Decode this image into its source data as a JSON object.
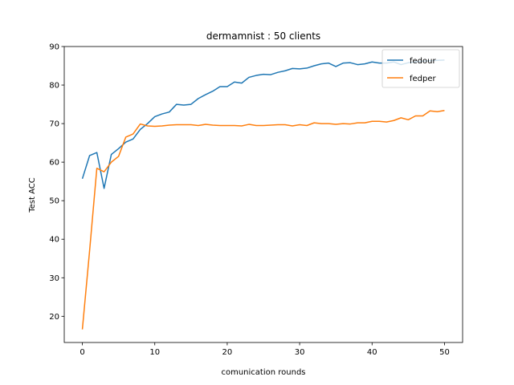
{
  "chart_data": {
    "type": "line",
    "title": "dermamnist : 50 clients",
    "xlabel": "comunication rounds",
    "ylabel": "Test ACC",
    "xlim": [
      -2.5,
      52.5
    ],
    "ylim": [
      13.2,
      90
    ],
    "xticks": [
      0,
      10,
      20,
      30,
      40,
      50
    ],
    "yticks": [
      20,
      30,
      40,
      50,
      60,
      70,
      80,
      90
    ],
    "grid": false,
    "legend_position": "top-right",
    "x": [
      0,
      1,
      2,
      3,
      4,
      5,
      6,
      7,
      8,
      9,
      10,
      11,
      12,
      13,
      14,
      15,
      16,
      17,
      18,
      19,
      20,
      21,
      22,
      23,
      24,
      25,
      26,
      27,
      28,
      29,
      30,
      31,
      32,
      33,
      34,
      35,
      36,
      37,
      38,
      39,
      40,
      41,
      42,
      43,
      44,
      45,
      46,
      47,
      48,
      49,
      50
    ],
    "series": [
      {
        "name": "fedour",
        "color": "#1f77b4",
        "values": [
          55.7,
          61.7,
          62.5,
          53.2,
          62.0,
          63.5,
          65.2,
          66.0,
          68.5,
          70.0,
          71.8,
          72.5,
          73.0,
          75.0,
          74.8,
          75.0,
          76.5,
          77.5,
          78.4,
          79.6,
          79.6,
          80.8,
          80.5,
          82.0,
          82.5,
          82.8,
          82.7,
          83.3,
          83.7,
          84.3,
          84.2,
          84.4,
          85.0,
          85.5,
          85.7,
          84.8,
          85.7,
          85.8,
          85.3,
          85.5,
          86.0,
          85.7,
          85.7,
          86.0,
          85.3,
          85.8,
          86.0,
          86.2,
          86.3,
          86.4,
          86.5
        ]
      },
      {
        "name": "fedper",
        "color": "#ff7f0e",
        "values": [
          16.6,
          37.0,
          58.4,
          57.5,
          60.0,
          61.5,
          66.5,
          67.3,
          69.9,
          69.4,
          69.3,
          69.4,
          69.6,
          69.7,
          69.7,
          69.7,
          69.5,
          69.8,
          69.6,
          69.5,
          69.5,
          69.5,
          69.4,
          69.8,
          69.5,
          69.5,
          69.6,
          69.7,
          69.7,
          69.4,
          69.7,
          69.5,
          70.2,
          70.0,
          70.0,
          69.8,
          70.0,
          69.9,
          70.2,
          70.2,
          70.6,
          70.6,
          70.4,
          70.8,
          71.5,
          71.0,
          72.0,
          72.0,
          73.3,
          73.1,
          73.4
        ]
      }
    ]
  }
}
